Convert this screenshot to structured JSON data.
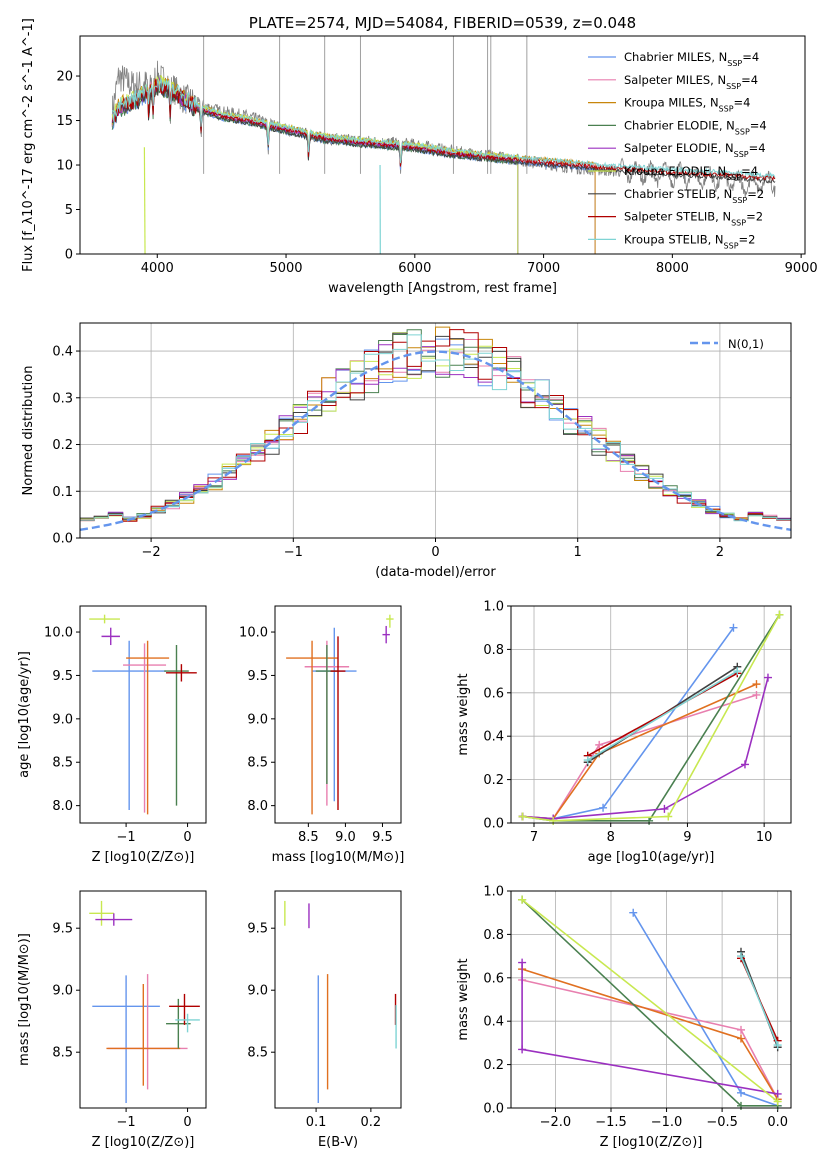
{
  "chart_data": [
    {
      "id": "spectrum",
      "type": "line",
      "title": "PLATE=2574, MJD=54084, FIBERID=0539, z=0.048",
      "xlabel": "wavelength [Angstrom, rest frame]",
      "ylabel": "Flux [f_λ10^-17 erg cm^-2 s^-1 A^-1]",
      "xlim": [
        3400,
        9030
      ],
      "ylim": [
        0,
        24.5
      ],
      "xticks": [
        4000,
        5000,
        6000,
        7000,
        8000,
        9000
      ],
      "yticks": [
        0,
        5,
        10,
        15,
        20
      ],
      "observed": {
        "color": "#808080",
        "x": [
          3650,
          3700,
          3800,
          3900,
          4000,
          4100,
          4200,
          4300,
          4500,
          4700,
          5000,
          5300,
          5600,
          6000,
          6300,
          6500,
          6800,
          7000,
          7300,
          7600,
          8000,
          8300,
          8600,
          8800
        ],
        "y": [
          16,
          20,
          19,
          19,
          20,
          19,
          17.5,
          17,
          16,
          15.5,
          14,
          13,
          12.7,
          12.3,
          11.5,
          11.2,
          10.6,
          10.2,
          9.6,
          9.3,
          8.9,
          8.5,
          7.8,
          8.0
        ]
      },
      "model_x": [
        3650,
        3700,
        3800,
        3900,
        4000,
        4100,
        4200,
        4300,
        4500,
        4700,
        5000,
        5300,
        5600,
        6000,
        6300,
        6500,
        6800,
        7000,
        7300,
        7400
      ],
      "model_y": [
        15,
        16.5,
        17,
        18,
        19,
        18.5,
        17.5,
        16.5,
        15.5,
        15,
        14,
        13,
        12.5,
        12,
        11.3,
        11,
        10.6,
        10.3,
        10,
        9.8
      ],
      "series": [
        {
          "name": "Chabrier MILES",
          "nssp": "4",
          "color": "#6495ed",
          "end": 7400
        },
        {
          "name": "Salpeter MILES",
          "nssp": "4",
          "color": "#e87faf",
          "end": 7400
        },
        {
          "name": "Kroupa MILES",
          "nssp": "4",
          "color": "#c8860b",
          "end": 7400
        },
        {
          "name": "Chabrier ELODIE",
          "nssp": "4",
          "color": "#4a8050",
          "end": 6800
        },
        {
          "name": "Salpeter ELODIE",
          "nssp": "4",
          "color": "#9b30c0",
          "end": 6800
        },
        {
          "name": "Kroupa ELODIE",
          "nssp": "4",
          "color": "#c8e850",
          "end": 6800
        },
        {
          "name": "Chabrier STELIB",
          "nssp": "2",
          "color": "#404040",
          "end": 8800
        },
        {
          "name": "Salpeter STELIB",
          "nssp": "2",
          "color": "#b00000",
          "end": 8800
        },
        {
          "name": "Kroupa STELIB",
          "nssp": "2",
          "color": "#7fd4d4",
          "end": 8800
        }
      ]
    },
    {
      "id": "residuals",
      "type": "histogram",
      "xlabel": "(data-model)/error",
      "ylabel": "Normed distribution",
      "xlim": [
        -2.5,
        2.5
      ],
      "ylim": [
        0,
        0.46
      ],
      "xticks": [
        -2,
        -1,
        0,
        1,
        2
      ],
      "yticks": [
        0.0,
        0.1,
        0.2,
        0.3,
        0.4
      ],
      "legend": "N(0,1)",
      "normal_color": "#6495ed",
      "bin_width": 0.1,
      "series_colors": [
        "#6495ed",
        "#e87faf",
        "#c8860b",
        "#4a8050",
        "#9b30c0",
        "#c8e850",
        "#404040",
        "#b00000",
        "#7fd4d4"
      ]
    },
    {
      "id": "age_vs_Z",
      "type": "scatter",
      "xlabel": "Z [log10(Z/Z⊙)]",
      "ylabel": "age  [log10(age/yr)]",
      "xlim": [
        -1.75,
        0.3
      ],
      "ylim": [
        7.8,
        10.3
      ],
      "xticks": [
        -1,
        0
      ],
      "yticks": [
        8.0,
        8.5,
        9.0,
        9.5,
        10.0
      ],
      "points": [
        {
          "x": -0.95,
          "y": 9.55,
          "xerr": 0.6,
          "yerr": [
            1.6,
            0.35
          ],
          "color": "#6495ed"
        },
        {
          "x": -0.7,
          "y": 9.62,
          "xerr": 0.35,
          "yerr": [
            1.7,
            0.25
          ],
          "color": "#e87faf"
        },
        {
          "x": -0.65,
          "y": 9.7,
          "xerr": 0.35,
          "yerr": [
            1.8,
            0.2
          ],
          "color": "#e07020"
        },
        {
          "x": -0.18,
          "y": 9.55,
          "xerr": 0.2,
          "yerr": [
            1.55,
            0.3
          ],
          "color": "#4a8050"
        },
        {
          "x": -0.1,
          "y": 9.53,
          "xerr": 0.25,
          "yerr": [
            0.1,
            0.1
          ],
          "color": "#b00000"
        },
        {
          "x": -1.35,
          "y": 10.15,
          "xerr": 0.25,
          "yerr": [
            0.05,
            0.05
          ],
          "color": "#c8e850"
        },
        {
          "x": -1.25,
          "y": 9.95,
          "xerr": 0.15,
          "yerr": [
            0.1,
            0.1
          ],
          "color": "#9b30c0"
        }
      ]
    },
    {
      "id": "age_vs_mass",
      "type": "scatter",
      "xlabel": "mass [log10(M/M⊙)]",
      "ylabel": "",
      "xlim": [
        8.05,
        9.75
      ],
      "ylim": [
        7.8,
        10.3
      ],
      "xticks": [
        8.5,
        9.0,
        9.5
      ],
      "yticks": [
        8.0,
        8.5,
        9.0,
        9.5,
        10.0
      ],
      "points": [
        {
          "x": 8.85,
          "y": 9.55,
          "xerr": 0.3,
          "yerr": [
            1.5,
            0.5
          ],
          "color": "#6495ed"
        },
        {
          "x": 8.75,
          "y": 9.6,
          "xerr": 0.3,
          "yerr": [
            1.6,
            0.3
          ],
          "color": "#e87faf"
        },
        {
          "x": 8.55,
          "y": 9.7,
          "xerr": 0.35,
          "yerr": [
            1.8,
            0.2
          ],
          "color": "#e07020"
        },
        {
          "x": 8.75,
          "y": 9.55,
          "xerr": 0.15,
          "yerr": [
            1.3,
            0.3
          ],
          "color": "#4a8050"
        },
        {
          "x": 8.9,
          "y": 9.55,
          "xerr": 0.1,
          "yerr": [
            1.6,
            0.4
          ],
          "color": "#b00000"
        },
        {
          "x": 9.6,
          "y": 10.15,
          "xerr": 0.05,
          "yerr": [
            0.1,
            0.05
          ],
          "color": "#c8e850"
        },
        {
          "x": 9.55,
          "y": 9.97,
          "xerr": 0.05,
          "yerr": [
            0.1,
            0.1
          ],
          "color": "#9b30c0"
        }
      ]
    },
    {
      "id": "weight_vs_age",
      "type": "line",
      "xlabel": "age  [log10(age/yr)]",
      "ylabel": "mass weight",
      "xlim": [
        6.7,
        10.35
      ],
      "ylim": [
        0,
        1.0
      ],
      "xticks": [
        7,
        8,
        9,
        10
      ],
      "yticks": [
        0.0,
        0.2,
        0.4,
        0.6,
        0.8,
        1.0
      ],
      "series": [
        {
          "color": "#6495ed",
          "x": [
            6.85,
            7.25,
            7.9,
            9.6
          ],
          "y": [
            0.03,
            0.02,
            0.07,
            0.9
          ]
        },
        {
          "color": "#e87faf",
          "x": [
            6.85,
            7.25,
            7.85,
            9.9
          ],
          "y": [
            0.03,
            0.02,
            0.36,
            0.59
          ]
        },
        {
          "color": "#e07020",
          "x": [
            6.85,
            7.25,
            7.85,
            9.9
          ],
          "y": [
            0.03,
            0.02,
            0.32,
            0.64
          ]
        },
        {
          "color": "#4a8050",
          "x": [
            6.85,
            7.25,
            8.5,
            10.2
          ],
          "y": [
            0.03,
            0.01,
            0.01,
            0.96
          ]
        },
        {
          "color": "#9b30c0",
          "x": [
            6.85,
            7.25,
            8.7,
            9.75,
            10.05
          ],
          "y": [
            0.03,
            0.02,
            0.065,
            0.27,
            0.67
          ]
        },
        {
          "color": "#c8e850",
          "x": [
            6.85,
            7.25,
            8.75,
            10.2
          ],
          "y": [
            0.03,
            0.01,
            0.03,
            0.96
          ]
        },
        {
          "color": "#404040",
          "x": [
            7.7,
            9.65
          ],
          "y": [
            0.28,
            0.72
          ]
        },
        {
          "color": "#b00000",
          "x": [
            7.7,
            9.65
          ],
          "y": [
            0.31,
            0.69
          ]
        },
        {
          "color": "#7fd4d4",
          "x": [
            7.7,
            9.65
          ],
          "y": [
            0.29,
            0.7
          ]
        }
      ]
    },
    {
      "id": "mass_vs_Z",
      "type": "scatter",
      "xlabel": "Z [log10(Z/Z⊙)]",
      "ylabel": "mass [log10(M/M⊙)]",
      "xlim": [
        -1.75,
        0.3
      ],
      "ylim": [
        8.05,
        9.8
      ],
      "xticks": [
        -1,
        0
      ],
      "yticks": [
        8.5,
        9.0,
        9.5
      ],
      "points": [
        {
          "x": -1.0,
          "y": 8.87,
          "xerr": 0.55,
          "yerr": [
            0.78,
            0.25
          ],
          "color": "#6495ed"
        },
        {
          "x": -0.65,
          "y": 8.53,
          "xerr": 0.65,
          "yerr": [
            0.33,
            0.6
          ],
          "color": "#e87faf"
        },
        {
          "x": -0.72,
          "y": 8.53,
          "xerr": 0.6,
          "yerr": [
            0.3,
            0.52
          ],
          "color": "#e07020"
        },
        {
          "x": -0.15,
          "y": 8.73,
          "xerr": 0.2,
          "yerr": [
            0.2,
            0.2
          ],
          "color": "#4a8050"
        },
        {
          "x": -0.05,
          "y": 8.87,
          "xerr": 0.25,
          "yerr": [
            0.15,
            0.1
          ],
          "color": "#b00000"
        },
        {
          "x": 0.0,
          "y": 8.76,
          "xerr": 0.2,
          "yerr": [
            0.1,
            0.05
          ],
          "color": "#7fd4d4"
        },
        {
          "x": -1.4,
          "y": 9.62,
          "xerr": 0.2,
          "yerr": [
            0.1,
            0.1
          ],
          "color": "#c8e850"
        },
        {
          "x": -1.2,
          "y": 9.57,
          "xerr": 0.3,
          "yerr": [
            0.05,
            0.05
          ],
          "color": "#9b30c0"
        }
      ]
    },
    {
      "id": "mass_vs_ebv",
      "type": "scatter",
      "xlabel": "E(B-V)",
      "ylabel": "",
      "xlim": [
        0.025,
        0.255
      ],
      "ylim": [
        8.05,
        9.8
      ],
      "xticks": [
        0.1,
        0.2
      ],
      "yticks": [
        8.5,
        9.0,
        9.5
      ],
      "points": [
        {
          "x": 0.104,
          "y": 8.87,
          "xerr": 0,
          "yerr": [
            0.78,
            0.25
          ],
          "color": "#6495ed"
        },
        {
          "x": 0.121,
          "y": 8.53,
          "xerr": 0,
          "yerr": [
            0.33,
            0.6
          ],
          "color": "#e07020"
        },
        {
          "x": 0.245,
          "y": 8.87,
          "xerr": 0,
          "yerr": [
            0.15,
            0.1
          ],
          "color": "#b00000"
        },
        {
          "x": 0.246,
          "y": 8.73,
          "xerr": 0,
          "yerr": [
            0.2,
            0.15
          ],
          "color": "#7fd4d4"
        },
        {
          "x": 0.043,
          "y": 9.62,
          "xerr": 0,
          "yerr": [
            0.1,
            0.1
          ],
          "color": "#c8e850"
        },
        {
          "x": 0.087,
          "y": 9.6,
          "xerr": 0,
          "yerr": [
            0.1,
            0.1
          ],
          "color": "#9b30c0"
        }
      ]
    },
    {
      "id": "weight_vs_Z",
      "type": "line",
      "xlabel": "Z [log10(Z/Z⊙)]",
      "ylabel": "mass weight",
      "xlim": [
        -2.4,
        0.12
      ],
      "ylim": [
        0,
        1.0
      ],
      "xticks": [
        -2.0,
        -1.5,
        -1.0,
        -0.5,
        0.0
      ],
      "yticks": [
        0.0,
        0.2,
        0.4,
        0.6,
        0.8,
        1.0
      ],
      "series": [
        {
          "color": "#6495ed",
          "x": [
            -1.3,
            -0.33,
            0.0
          ],
          "y": [
            0.9,
            0.07,
            0.01
          ]
        },
        {
          "color": "#e87faf",
          "x": [
            -2.3,
            -0.33,
            0.0
          ],
          "y": [
            0.59,
            0.36,
            0.04
          ]
        },
        {
          "color": "#e07020",
          "x": [
            -2.3,
            -0.33,
            0.0
          ],
          "y": [
            0.64,
            0.32,
            0.04
          ]
        },
        {
          "color": "#4a8050",
          "x": [
            -2.3,
            -0.33,
            0.0
          ],
          "y": [
            0.96,
            0.01,
            0.01
          ]
        },
        {
          "color": "#9b30c0",
          "x": [
            -2.3,
            -2.3,
            0.0
          ],
          "y": [
            0.67,
            0.27,
            0.065
          ]
        },
        {
          "color": "#c8e850",
          "x": [
            -2.3,
            0.0
          ],
          "y": [
            0.96,
            0.03
          ]
        },
        {
          "color": "#404040",
          "x": [
            -0.33,
            0.0
          ],
          "y": [
            0.72,
            0.28
          ]
        },
        {
          "color": "#b00000",
          "x": [
            -0.33,
            0.0
          ],
          "y": [
            0.69,
            0.31
          ]
        },
        {
          "color": "#7fd4d4",
          "x": [
            -0.33,
            0.0
          ],
          "y": [
            0.7,
            0.29
          ]
        }
      ]
    }
  ]
}
